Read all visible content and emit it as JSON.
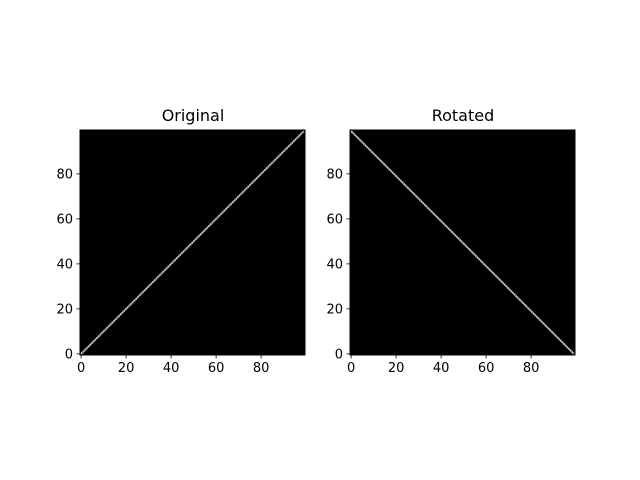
{
  "chart_data": [
    {
      "type": "heatmap",
      "title": "Original",
      "image_size": [
        100,
        100
      ],
      "pixels": "black background; value 1 on cells where row == col",
      "line": {
        "from": [
          0,
          0
        ],
        "to": [
          99,
          99
        ]
      },
      "x_ticks": [
        "0",
        "20",
        "40",
        "60",
        "80"
      ],
      "y_ticks": [
        "0",
        "20",
        "40",
        "60",
        "80"
      ],
      "xlim": [
        -0.5,
        99.5
      ],
      "ylim": [
        99.5,
        -0.5
      ],
      "colormap": "gray",
      "grid": false
    },
    {
      "type": "heatmap",
      "title": "Rotated",
      "image_size": [
        100,
        100
      ],
      "pixels": "black background; value 1 on cells where row + col == 99",
      "line": {
        "from": [
          0,
          99
        ],
        "to": [
          99,
          0
        ]
      },
      "x_ticks": [
        "0",
        "20",
        "40",
        "60",
        "80"
      ],
      "y_ticks": [
        "0",
        "20",
        "40",
        "60",
        "80"
      ],
      "xlim": [
        -0.5,
        99.5
      ],
      "ylim": [
        99.5,
        -0.5
      ],
      "colormap": "gray",
      "grid": false
    }
  ],
  "colors": {
    "background": "#000000",
    "line": "#c8c8c8",
    "frame": "#000000"
  }
}
